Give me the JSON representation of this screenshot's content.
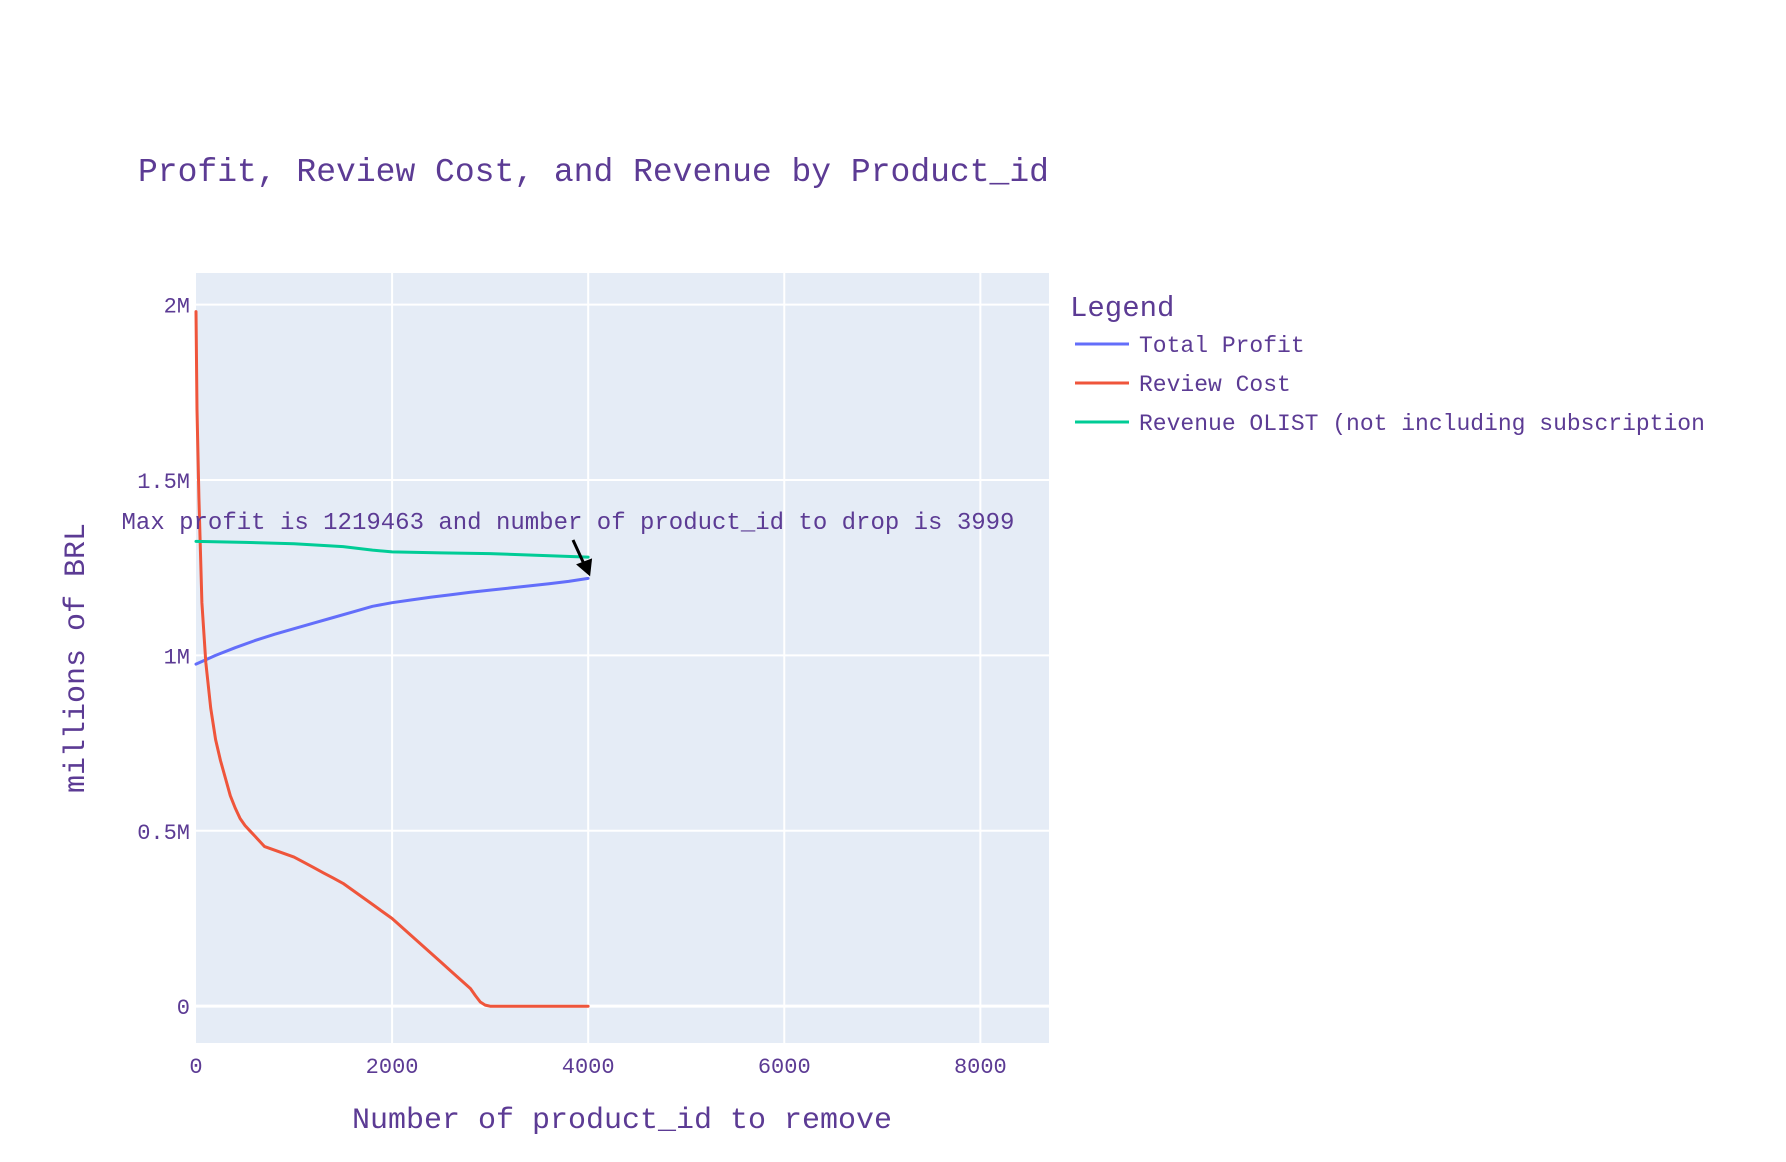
{
  "chart_data": {
    "type": "line",
    "title": "Profit, Review Cost, and Revenue by Product_id",
    "xlabel": "Number of product_id to remove",
    "ylabel": "millions of BRL",
    "xlim": [
      0,
      8700
    ],
    "ylim": [
      -105000,
      2090000
    ],
    "x_ticks": [
      {
        "value": 0,
        "label": "0"
      },
      {
        "value": 2000,
        "label": "2000"
      },
      {
        "value": 4000,
        "label": "4000"
      },
      {
        "value": 6000,
        "label": "6000"
      },
      {
        "value": 8000,
        "label": "8000"
      }
    ],
    "y_ticks": [
      {
        "value": 0,
        "label": "0"
      },
      {
        "value": 500000,
        "label": "0.5M"
      },
      {
        "value": 1000000,
        "label": "1M"
      },
      {
        "value": 1500000,
        "label": "1.5M"
      },
      {
        "value": 2000000,
        "label": "2M"
      }
    ],
    "grid": true,
    "legend": {
      "title": "Legend",
      "position": "right"
    },
    "series": [
      {
        "name": "Total Profit",
        "color": "#636efa",
        "x": [
          0,
          200,
          400,
          600,
          800,
          1000,
          1200,
          1400,
          1600,
          1800,
          2000,
          2200,
          2400,
          2600,
          2800,
          3000,
          3200,
          3400,
          3600,
          3800,
          3999
        ],
        "y": [
          975000,
          1000000,
          1022000,
          1042000,
          1060000,
          1076000,
          1092000,
          1108000,
          1124000,
          1140000,
          1150000,
          1158000,
          1166000,
          1173000,
          1180000,
          1186000,
          1192000,
          1198000,
          1204000,
          1211000,
          1219463
        ]
      },
      {
        "name": "Review Cost",
        "color": "#ef553b",
        "x": [
          0,
          10,
          30,
          60,
          100,
          150,
          200,
          250,
          300,
          350,
          400,
          450,
          500,
          550,
          600,
          700,
          800,
          900,
          1000,
          1100,
          1200,
          1300,
          1400,
          1500,
          1600,
          1700,
          1800,
          1900,
          2000,
          2100,
          2200,
          2300,
          2400,
          2500,
          2600,
          2700,
          2800,
          2850,
          2900,
          2950,
          3000,
          3200,
          3500,
          3999
        ],
        "y": [
          1980000,
          1700000,
          1450000,
          1150000,
          980000,
          850000,
          760000,
          700000,
          650000,
          600000,
          565000,
          535000,
          515000,
          500000,
          485000,
          455000,
          445000,
          435000,
          425000,
          410000,
          395000,
          380000,
          365000,
          350000,
          330000,
          310000,
          290000,
          270000,
          250000,
          225000,
          200000,
          175000,
          150000,
          125000,
          100000,
          75000,
          50000,
          30000,
          12000,
          3000,
          0,
          0,
          0,
          0
        ]
      },
      {
        "name": "Revenue OLIST (not including subscription",
        "color": "#00cc96",
        "x": [
          0,
          500,
          1000,
          1500,
          1800,
          2000,
          2500,
          3000,
          3500,
          3999
        ],
        "y": [
          1325000,
          1322000,
          1318000,
          1310000,
          1300000,
          1295000,
          1292000,
          1290000,
          1285000,
          1280000
        ]
      }
    ],
    "annotation": {
      "text": "Max profit is 1219463 and number of product_id to drop is 3999",
      "x": 3999,
      "y": 1219463
    }
  }
}
